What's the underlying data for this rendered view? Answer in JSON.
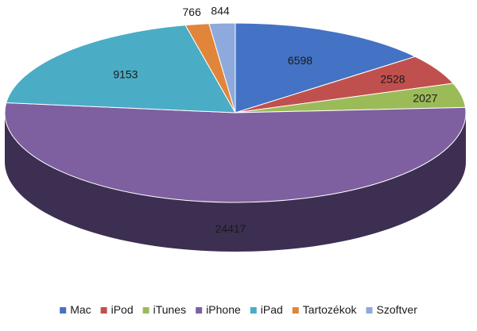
{
  "chart_data": {
    "type": "pie",
    "three_d": true,
    "categories": [
      "Mac",
      "iPod",
      "iTunes",
      "iPhone",
      "iPad",
      "Tartozékok",
      "Szoftver"
    ],
    "values": [
      6598,
      2528,
      2027,
      24417,
      9153,
      766,
      844
    ],
    "data_labels": [
      "6598",
      "2528",
      "2027",
      "24417",
      "9153",
      "766",
      "844"
    ],
    "colors": [
      "#4472c4",
      "#c0504d",
      "#9bbb59",
      "#7e5fa0",
      "#4bacc6",
      "#e0853a",
      "#8ea9db"
    ],
    "side_colors": [
      "#2f5597",
      "#8f3432",
      "#6f8a3c",
      "#3d2f52",
      "#2f7c90",
      "#a85f22",
      "#5f7fb8"
    ],
    "start_angle_deg": 0,
    "direction": "clockwise",
    "legend": {
      "position": "bottom"
    }
  }
}
